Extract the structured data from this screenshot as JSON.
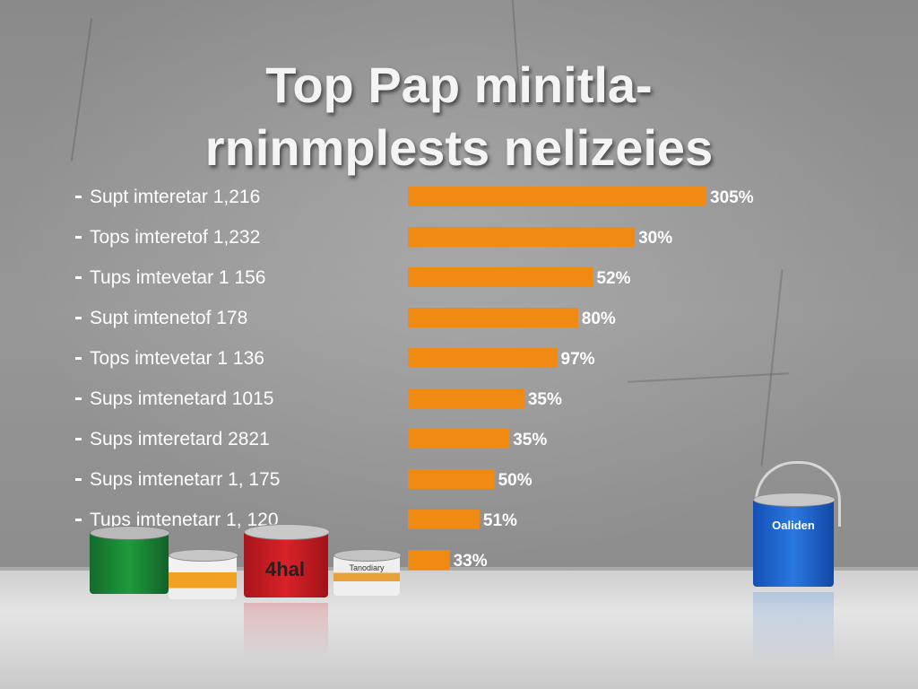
{
  "title": {
    "line1": "Top Pap minitla-",
    "line2": "rninmplests nelizeies"
  },
  "colors": {
    "bar": "#f08a12",
    "text": "#ffffff"
  },
  "chart_data": {
    "type": "bar",
    "orientation": "horizontal",
    "categories": [
      "Supt imteretar 1,216",
      "Tops imteretof 1,232",
      "Tups imtevetar 1 156",
      "Supt imtenetof 178",
      "Tops imtevetar 1 136",
      "Sups imtenetard 1015",
      "Sups imteretard 2821",
      "Sups imtenetarr 1, 175",
      "Tups imtenetarr 1, 120",
      ""
    ],
    "values": [
      100,
      76,
      62,
      57,
      50,
      39,
      34,
      29,
      24,
      14
    ],
    "value_labels": [
      "305%",
      "30%",
      "52%",
      "80%",
      "97%",
      "35%",
      "35%",
      "50%",
      "51%",
      "33%"
    ],
    "grid": false,
    "legend": "none"
  },
  "objects": {
    "can_red_label": "4hal",
    "can_blue_label": "Oaliden",
    "can_small_label": "Tanodiary"
  }
}
